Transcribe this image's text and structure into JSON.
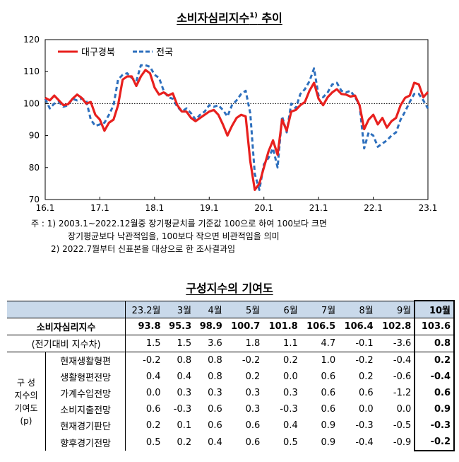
{
  "chart_title": "소비자심리지수",
  "chart_title_sup": "1)",
  "chart_title_suffix": " 추이",
  "chart_data": {
    "type": "line",
    "ylim": [
      70,
      120
    ],
    "yticks": [
      70,
      80,
      90,
      100,
      110,
      120
    ],
    "xtick_labels": [
      "16.1",
      "17.1",
      "18.1",
      "19.1",
      "20.1",
      "21.1",
      "22.1",
      "23.1"
    ],
    "reference_line": 100,
    "grid": false,
    "legend_position": "top-left",
    "series": [
      {
        "name": "대구경북",
        "color": "#e8201e",
        "style": "solid",
        "values": [
          101.8,
          101,
          102.5,
          101,
          99.5,
          99.8,
          101.5,
          102.8,
          101.8,
          100,
          100.5,
          96.5,
          95,
          91.5,
          94,
          95,
          99.5,
          107.5,
          108.5,
          108.5,
          105.5,
          108.5,
          110.5,
          109.5,
          105,
          102.8,
          103.5,
          102.5,
          103.2,
          99.5,
          97.5,
          97.5,
          95.5,
          94.5,
          95.5,
          96.5,
          97.5,
          98,
          96.5,
          93.5,
          90,
          93,
          95.5,
          96.5,
          96,
          82,
          73,
          75,
          80,
          85,
          88.5,
          84,
          95,
          91.5,
          97.5,
          98,
          99.5,
          100.5,
          104,
          106.5,
          101.5,
          99.5,
          102,
          103.5,
          104.5,
          103,
          102.8,
          102.2,
          102.5,
          99.5,
          92,
          95,
          96.5,
          93.5,
          95.5,
          92.5,
          94.5,
          95.5,
          99.5,
          101.8,
          102.5,
          106.5,
          106,
          102,
          103.6
        ]
      },
      {
        "name": "전국",
        "color": "#2d6fbd",
        "style": "dashed",
        "values": [
          101.5,
          98.5,
          100,
          100.5,
          99,
          99.5,
          101.5,
          101,
          101.5,
          101,
          95,
          93,
          93.5,
          94,
          96.5,
          99.5,
          107.5,
          109,
          109.5,
          108,
          107,
          112,
          112,
          111.5,
          109,
          108,
          104,
          102,
          101.5,
          99,
          97.5,
          98.5,
          97,
          95,
          96.5,
          97.5,
          99.5,
          99,
          99.5,
          98,
          96,
          99.5,
          101,
          103,
          104,
          97,
          78,
          73,
          81,
          83,
          86,
          80,
          96,
          91,
          100,
          98.5,
          103,
          104.5,
          107,
          111,
          102.5,
          102,
          103.5,
          106,
          106.5,
          104,
          103.5,
          104,
          102,
          99.5,
          86,
          91,
          90,
          86.5,
          87.5,
          88.5,
          90,
          91,
          95,
          97.5,
          100.5,
          103,
          103,
          101,
          98.5
        ]
      }
    ]
  },
  "notes": {
    "line1": "주 : 1) 2003.1~2022.12월중 장기평균치를 기준값 100으로 하여 100보다 크면",
    "line2": "장기평균보다 낙관적임을, 100보다 작으면 비관적임을 의미",
    "line3": "2) 2022.7월부터 신표본을 대상으로 한 조사결과임"
  },
  "table": {
    "title": "구성지수의 기여도",
    "headers": [
      "23.2월",
      "3월",
      "4월",
      "5월",
      "6월",
      "7월",
      "8월",
      "9월",
      "10월"
    ],
    "main_row": {
      "label": "소비자심리지수",
      "values": [
        "93.8",
        "95.3",
        "98.9",
        "100.7",
        "101.8",
        "106.5",
        "106.4",
        "102.8",
        "103.6"
      ]
    },
    "change_row": {
      "label": "(전기대비 지수차)",
      "values": [
        "1.5",
        "1.5",
        "3.6",
        "1.8",
        "1.1",
        "4.7",
        "-0.1",
        "-3.6",
        "0.8"
      ]
    },
    "group_label_lines": [
      "구 성",
      "지수의",
      "기여도",
      "(p)"
    ],
    "sub_rows": [
      {
        "label": "현재생활형편",
        "values": [
          "-0.2",
          "0.8",
          "0.8",
          "-0.2",
          "0.2",
          "1.0",
          "-0.2",
          "-0.4",
          "0.2"
        ]
      },
      {
        "label": "생활형편전망",
        "values": [
          "0.4",
          "0.4",
          "0.8",
          "0.2",
          "0.0",
          "0.6",
          "0.2",
          "-0.6",
          "-0.4"
        ]
      },
      {
        "label": "가계수입전망",
        "values": [
          "0.0",
          "0.3",
          "0.3",
          "0.3",
          "0.3",
          "0.6",
          "0.6",
          "-1.2",
          "0.6"
        ]
      },
      {
        "label": "소비지출전망",
        "values": [
          "0.6",
          "-0.3",
          "0.6",
          "0.3",
          "-0.3",
          "0.6",
          "0.0",
          "0.0",
          "0.9"
        ]
      },
      {
        "label": "현재경기판단",
        "values": [
          "0.2",
          "0.1",
          "0.6",
          "0.6",
          "0.4",
          "0.9",
          "-0.3",
          "-0.5",
          "-0.3"
        ]
      },
      {
        "label": "향후경기전망",
        "values": [
          "0.5",
          "0.2",
          "0.4",
          "0.6",
          "0.5",
          "0.9",
          "-0.4",
          "-0.9",
          "-0.2"
        ]
      }
    ]
  }
}
